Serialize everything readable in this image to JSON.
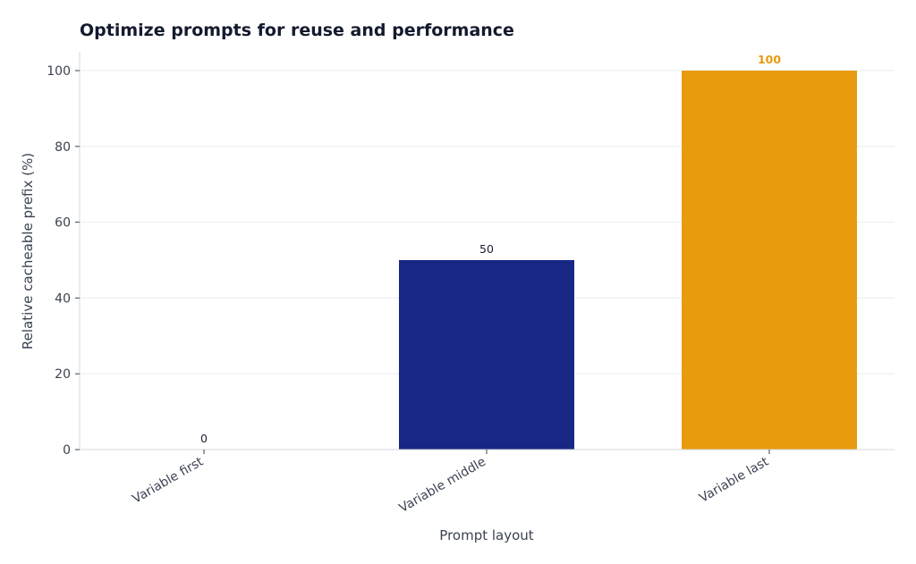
{
  "chart_data": {
    "type": "bar",
    "title": "Optimize prompts for reuse and performance",
    "xlabel": "Prompt layout",
    "ylabel": "Relative cacheable prefix (%)",
    "categories": [
      "Variable first",
      "Variable middle",
      "Variable last"
    ],
    "values": [
      0,
      50,
      100
    ],
    "data_labels": [
      "0",
      "50",
      "100"
    ],
    "ylim": [
      0,
      105
    ],
    "yticks": [
      0,
      20,
      40,
      60,
      80,
      100
    ],
    "ytick_labels": [
      "0",
      "20",
      "40",
      "60",
      "80",
      "100"
    ],
    "bar_colors": [
      "#5b7bd5",
      "#172783",
      "#e89b0c"
    ],
    "highlight_index": 2,
    "grid": true,
    "legend": "none"
  }
}
